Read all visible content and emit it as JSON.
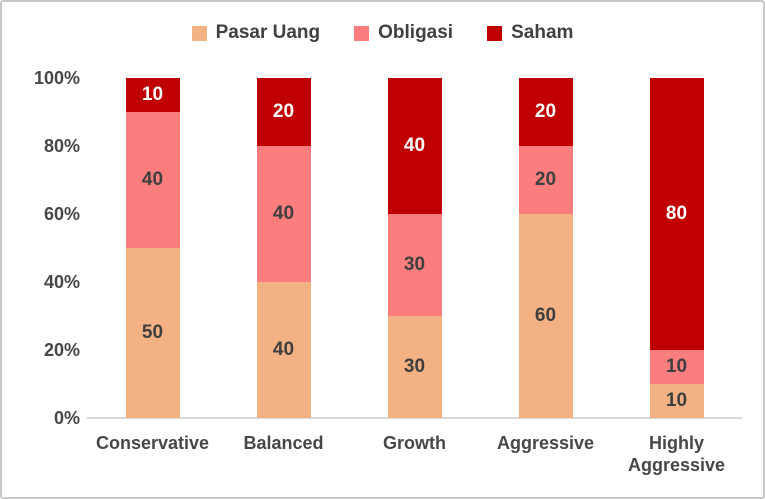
{
  "chart_data": {
    "type": "bar",
    "stacked": true,
    "orientation": "vertical",
    "categories": [
      "Conservative",
      "Balanced",
      "Growth",
      "Aggressive",
      "Highly Aggressive"
    ],
    "series": [
      {
        "name": "Pasar Uang",
        "color": "#F4B183",
        "label_color": "#3f3f3f",
        "values": [
          50,
          40,
          30,
          60,
          10
        ]
      },
      {
        "name": "Obligasi",
        "color": "#FB7D7D",
        "label_color": "#3f3f3f",
        "values": [
          40,
          40,
          30,
          20,
          10
        ]
      },
      {
        "name": "Saham",
        "color": "#C00000",
        "label_color": "#ffffff",
        "values": [
          10,
          20,
          40,
          20,
          80
        ]
      }
    ],
    "y_ticks": [
      "0%",
      "20%",
      "40%",
      "60%",
      "80%",
      "100%"
    ],
    "ylim": [
      0,
      100
    ],
    "grid": false,
    "data_labels": true,
    "legend_position": "top",
    "axis_line_color": "#d9d9d9",
    "text_color": "#404040"
  }
}
